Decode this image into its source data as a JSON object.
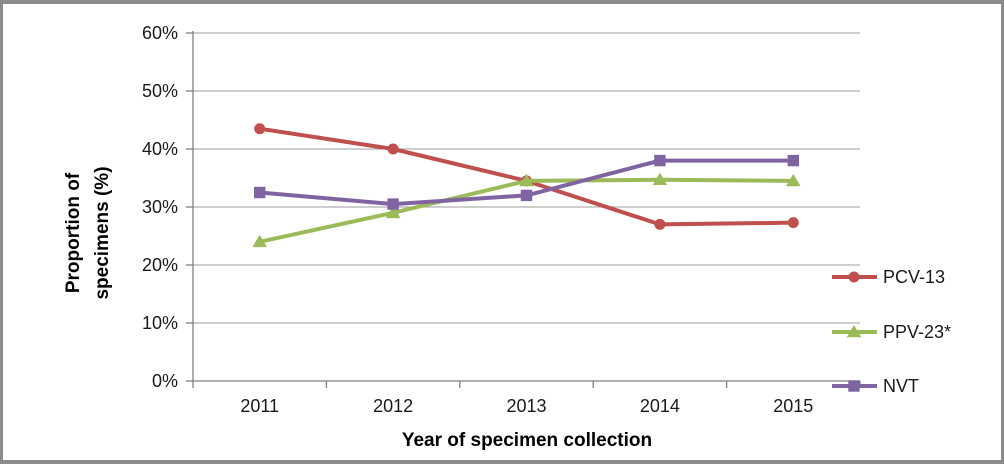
{
  "chart_data": {
    "type": "line",
    "title": "",
    "xlabel": "Year of specimen collection",
    "ylabel": "Proportion of specimens (%)",
    "ylabel_lines": [
      "Proportion of",
      "specimens (%)"
    ],
    "categories": [
      "2011",
      "2012",
      "2013",
      "2014",
      "2015"
    ],
    "series": [
      {
        "name": "PCV-13",
        "marker": "circle",
        "color": "#C0504D",
        "values": [
          43.5,
          40.0,
          34.5,
          27.0,
          27.3
        ]
      },
      {
        "name": "PPV-23*",
        "marker": "triangle",
        "color": "#9BBB59",
        "values": [
          24.0,
          29.0,
          34.5,
          34.7,
          34.5
        ]
      },
      {
        "name": "NVT",
        "marker": "square",
        "color": "#8064A2",
        "values": [
          32.5,
          30.5,
          32.0,
          38.0,
          38.0
        ]
      }
    ],
    "ylim": [
      0,
      60
    ],
    "y_ticks": [
      0,
      10,
      20,
      30,
      40,
      50,
      60
    ],
    "y_tick_labels": [
      "0%",
      "10%",
      "20%",
      "30%",
      "40%",
      "50%",
      "60%"
    ],
    "grid": true,
    "legend_position": "right",
    "colors": {
      "gridline": "#9C9C9C",
      "axis": "#7F7F7F",
      "text": "#1A1A1A",
      "frame": "#8B8B8B",
      "background": "#FFFFFF"
    }
  }
}
